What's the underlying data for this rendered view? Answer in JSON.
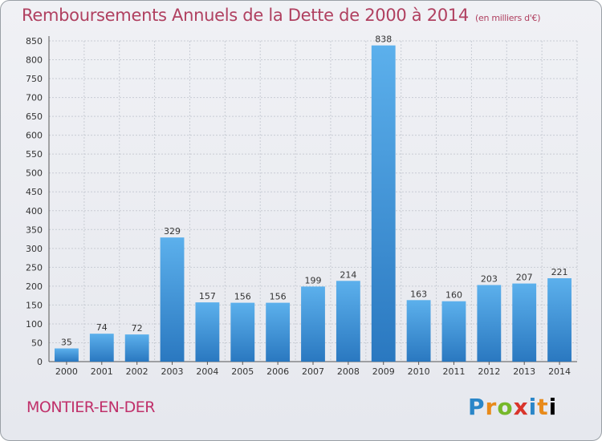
{
  "header": {
    "title": "Remboursements Annuels de la Dette de 2000 à 2014",
    "unit": "(en milliers d'€)"
  },
  "footer": {
    "place": "MONTIER-EN-DER",
    "logo": [
      "P",
      "r",
      "o",
      "x",
      "i",
      "t",
      "i"
    ]
  },
  "colors": {
    "bar": "#3a8fd8",
    "title": "#b04060",
    "grid": "#c8ccd4"
  },
  "chart_data": {
    "type": "bar",
    "title": "Remboursements Annuels de la Dette de 2000 à 2014",
    "xlabel": "",
    "ylabel": "",
    "categories": [
      "2000",
      "2001",
      "2002",
      "2003",
      "2004",
      "2005",
      "2006",
      "2007",
      "2008",
      "2009",
      "2010",
      "2011",
      "2012",
      "2013",
      "2014"
    ],
    "values": [
      35,
      74,
      72,
      329,
      157,
      156,
      156,
      199,
      214,
      838,
      163,
      160,
      203,
      207,
      221
    ],
    "ylim": [
      0,
      850
    ],
    "yticks": [
      0,
      50,
      100,
      150,
      200,
      250,
      300,
      350,
      400,
      450,
      500,
      550,
      600,
      650,
      700,
      750,
      800,
      850
    ],
    "grid": true,
    "legend": "none"
  }
}
